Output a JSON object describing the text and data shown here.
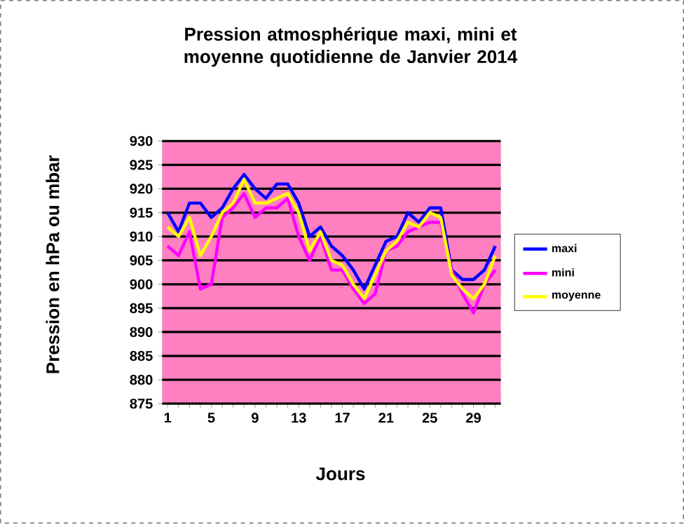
{
  "chart_data": {
    "type": "line",
    "title": "Pression atmosphérique maxi, mini et moyenne quotidienne de Janvier 2014",
    "xlabel": "Jours",
    "ylabel": "Pression en hPa ou mbar",
    "categories": [
      "1",
      null,
      null,
      null,
      "5",
      null,
      null,
      null,
      "9",
      null,
      null,
      null,
      "13",
      null,
      null,
      null,
      "17",
      null,
      null,
      null,
      "21",
      null,
      null,
      null,
      "25",
      null,
      null,
      null,
      "29",
      null,
      null
    ],
    "series": [
      {
        "name": "maxi",
        "color": "#0000ff",
        "values": [
          915,
          911,
          917,
          917,
          914,
          916,
          920,
          923,
          920,
          918,
          921,
          921,
          917,
          910,
          912,
          908,
          906,
          903,
          899,
          904,
          909,
          910,
          915,
          913,
          916,
          916,
          903,
          901,
          901,
          903,
          908
        ]
      },
      {
        "name": "mini",
        "color": "#ff00ff",
        "values": [
          908,
          906,
          911,
          899,
          900,
          914,
          916,
          919,
          914,
          916,
          916,
          918,
          910,
          905,
          910,
          903,
          903,
          899,
          896,
          898,
          907,
          908,
          911,
          912,
          913,
          913,
          903,
          898,
          894,
          900,
          903
        ]
      },
      {
        "name": "moyenne",
        "color": "#ffff00",
        "values": [
          912,
          910,
          914,
          906,
          910,
          915,
          917,
          922,
          917,
          917,
          918,
          919,
          915,
          907,
          911,
          905,
          904,
          900,
          897,
          902,
          907,
          909,
          913,
          912,
          915,
          914,
          902,
          899,
          897,
          900,
          906
        ]
      }
    ],
    "ylim": [
      875,
      930
    ],
    "yticks": [
      875,
      880,
      885,
      890,
      895,
      900,
      905,
      910,
      915,
      920,
      925,
      930
    ],
    "grid": "y",
    "legend": "right",
    "marker": "none",
    "line_style": "solid"
  }
}
